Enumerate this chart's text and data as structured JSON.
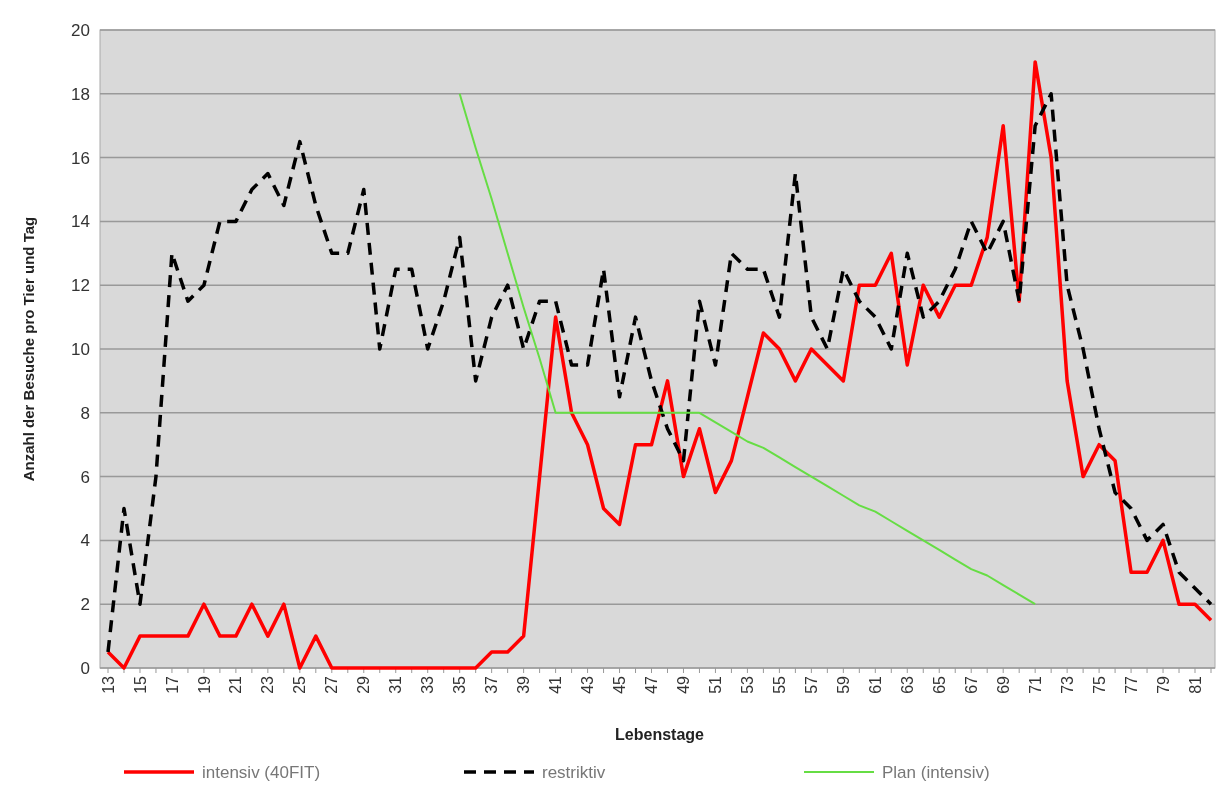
{
  "chart_data": {
    "type": "line",
    "xlabel": "Lebenstage",
    "ylabel": "Anzahl der Besuche pro Tier und Tag",
    "categories": [
      "13",
      null,
      "15",
      null,
      "17",
      null,
      "19",
      null,
      "21",
      null,
      "23",
      null,
      "25",
      null,
      "27",
      null,
      "29",
      null,
      "31",
      null,
      "33",
      null,
      "35",
      null,
      "37",
      null,
      "39",
      null,
      "41",
      null,
      "43",
      null,
      "45",
      null,
      "47",
      null,
      "49",
      null,
      "51",
      null,
      "53",
      null,
      "55",
      null,
      "57",
      null,
      "59",
      null,
      "61",
      null,
      "63",
      null,
      "65",
      null,
      "67",
      null,
      "69",
      null,
      "71",
      null,
      "73",
      null,
      "75",
      null,
      "77",
      null,
      "79",
      null,
      "81",
      null
    ],
    "series": [
      {
        "name": "intensiv (40FIT)",
        "color": "#ff0000",
        "line_style": "solid",
        "values": [
          0.5,
          0,
          1,
          1,
          1,
          1,
          2,
          1,
          1,
          2,
          1,
          2,
          0,
          1,
          0,
          0,
          0,
          0,
          0,
          0,
          0,
          0,
          0,
          0,
          0.5,
          0.5,
          1,
          6,
          11,
          8,
          7,
          5,
          4.5,
          7,
          7,
          9,
          6,
          7.5,
          5.5,
          6.5,
          8.5,
          10.5,
          10,
          9,
          10,
          9.5,
          9,
          12,
          12,
          13,
          9.5,
          12,
          11,
          12,
          12,
          13.5,
          17,
          11.5,
          19,
          16,
          9,
          6,
          7,
          6.5,
          3,
          3,
          4,
          2,
          2,
          1.5
        ]
      },
      {
        "name": "restriktiv",
        "color": "#000000",
        "line_style": "dashed",
        "values": [
          0.5,
          5,
          2,
          6,
          13,
          11.5,
          12,
          14,
          14,
          15,
          15.5,
          14.5,
          16.5,
          14.5,
          13,
          13,
          15,
          10,
          12.5,
          12.5,
          10,
          11.5,
          13.5,
          9,
          11,
          12,
          10,
          11.5,
          11.5,
          9.5,
          9.5,
          12.5,
          8.5,
          11,
          9,
          7.5,
          6.5,
          11.5,
          9.5,
          13,
          12.5,
          12.5,
          11,
          15.5,
          11,
          10,
          12.5,
          11.5,
          11,
          10,
          13,
          11,
          11.5,
          12.5,
          14,
          13,
          14,
          11.5,
          17,
          18,
          12,
          10,
          7.5,
          5.5,
          5,
          4,
          4.5,
          3,
          2.5,
          2
        ]
      },
      {
        "name": "Plan (intensiv)",
        "color": "#66dd44",
        "line_style": "solid",
        "values": [
          null,
          null,
          null,
          null,
          null,
          null,
          null,
          null,
          null,
          null,
          null,
          null,
          null,
          null,
          null,
          null,
          null,
          null,
          null,
          null,
          null,
          null,
          18,
          16.3,
          14.7,
          13,
          11.3,
          9.7,
          8,
          8,
          8,
          8,
          8,
          8,
          8,
          8,
          8,
          8,
          7.7,
          7.4,
          7.1,
          6.9,
          6.6,
          6.3,
          6,
          5.7,
          5.4,
          5.1,
          4.9,
          4.6,
          4.3,
          4,
          3.7,
          3.4,
          3.1,
          2.9,
          2.6,
          2.3,
          2,
          null,
          null,
          null,
          null,
          null,
          null,
          null,
          null,
          null,
          null,
          null
        ]
      }
    ],
    "ylim": [
      0,
      20
    ],
    "yticks": [
      0,
      2,
      4,
      6,
      8,
      10,
      12,
      14,
      16,
      18,
      20
    ],
    "grid": "y",
    "legend": "bottom"
  }
}
